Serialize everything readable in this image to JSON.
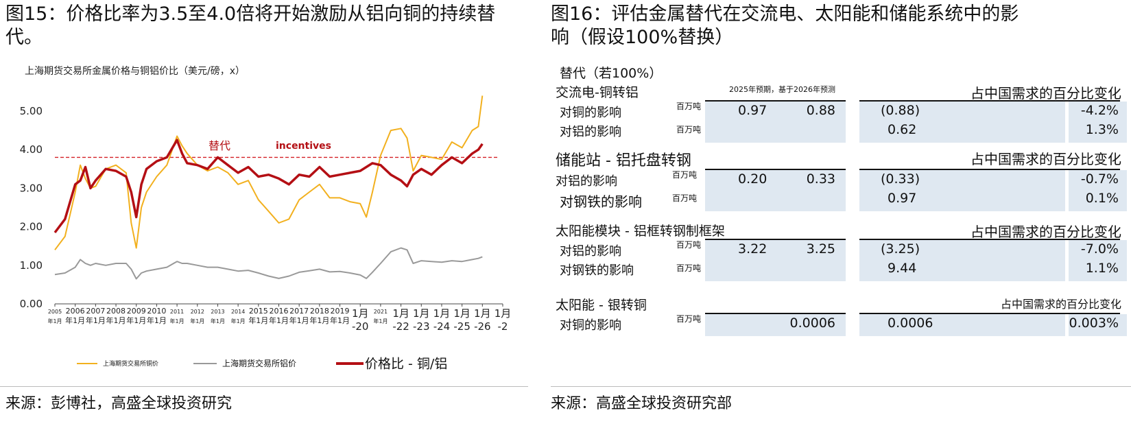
{
  "left": {
    "figure_title_line1": "图15：价格比率为3.5至4.0倍将开始激励从铝向铜的持续替",
    "figure_title_line2": "代。",
    "chart_title": "上海期货交易所金属价格与铜铝价比（美元/磅，x）",
    "source": "来源：彭博社，高盛全球投资研究",
    "annotation_cn": "替代",
    "annotation_en": "incentives"
  },
  "chart_data": {
    "type": "line",
    "title": "上海期货交易所金属价格与铜铝价比（美元/磅，x）",
    "ylim": [
      0,
      5.5
    ],
    "y_ticks": [
      "0.00",
      "1.00",
      "2.00",
      "3.00",
      "4.00",
      "5.00"
    ],
    "x_tick_labels": [
      {
        "top": "2005",
        "bottom": "年1月",
        "size": "small"
      },
      {
        "top": "2006",
        "bottom": "年1月",
        "size": "mid"
      },
      {
        "top": "2007",
        "bottom": "年1月",
        "size": "mid"
      },
      {
        "top": "2008",
        "bottom": "年1月",
        "size": "mid"
      },
      {
        "top": "2009",
        "bottom": "年1月",
        "size": "mid"
      },
      {
        "top": "2010",
        "bottom": "年1月",
        "size": "mid"
      },
      {
        "top": "2011",
        "bottom": "年1月",
        "size": "small"
      },
      {
        "top": "2012",
        "bottom": "年1月",
        "size": "small"
      },
      {
        "top": "2013",
        "bottom": "年1月",
        "size": "small"
      },
      {
        "top": "2014",
        "bottom": "年1月",
        "size": "small"
      },
      {
        "top": "2015",
        "bottom": "年1月",
        "size": "mid"
      },
      {
        "top": "2016",
        "bottom": "年1月",
        "size": "mid"
      },
      {
        "top": "2017",
        "bottom": "年1月",
        "size": "mid"
      },
      {
        "top": "2018",
        "bottom": "年1月",
        "size": "mid"
      },
      {
        "top": "2019",
        "bottom": "年1月",
        "size": "mid"
      },
      {
        "top": "1月",
        "bottom": "-20",
        "size": "big"
      },
      {
        "top": "2021",
        "bottom": "年1月",
        "size": "small"
      },
      {
        "top": "1月",
        "bottom": "-22",
        "size": "big"
      },
      {
        "top": "1月",
        "bottom": "-23",
        "size": "big"
      },
      {
        "top": "1月",
        "bottom": "-24",
        "size": "big"
      },
      {
        "top": "1月",
        "bottom": "-25",
        "size": "big"
      },
      {
        "top": "1月",
        "bottom": "-26",
        "size": "big"
      },
      {
        "top": "1月",
        "bottom": "-2",
        "size": "big"
      }
    ],
    "x": [
      2005.0,
      2005.5,
      2006.0,
      2006.25,
      2006.5,
      2006.75,
      2007.0,
      2007.5,
      2008.0,
      2008.5,
      2008.75,
      2009.0,
      2009.25,
      2009.5,
      2010.0,
      2010.5,
      2011.0,
      2011.25,
      2011.5,
      2012.0,
      2012.5,
      2013.0,
      2013.5,
      2014.0,
      2014.5,
      2015.0,
      2015.5,
      2016.0,
      2016.5,
      2017.0,
      2017.5,
      2018.0,
      2018.5,
      2019.0,
      2019.5,
      2020.0,
      2020.3,
      2020.6,
      2021.0,
      2021.5,
      2022.0,
      2022.3,
      2022.6,
      2023.0,
      2023.5,
      2024.0,
      2024.5,
      2025.0,
      2025.5,
      2025.8,
      2026.0
    ],
    "series": [
      {
        "name": "上海期货交易所铜价",
        "color": "#f2b01e",
        "values": [
          1.4,
          1.75,
          2.9,
          3.6,
          3.25,
          3.0,
          3.05,
          3.5,
          3.6,
          3.4,
          2.1,
          1.45,
          2.5,
          2.9,
          3.3,
          3.6,
          4.35,
          4.1,
          3.9,
          3.6,
          3.45,
          3.55,
          3.4,
          3.1,
          3.2,
          2.7,
          2.4,
          2.1,
          2.2,
          2.7,
          2.9,
          3.1,
          2.75,
          2.75,
          2.65,
          2.6,
          2.25,
          2.9,
          3.85,
          4.5,
          4.55,
          4.3,
          3.45,
          3.85,
          3.8,
          3.75,
          4.2,
          4.05,
          4.5,
          4.6,
          5.4
        ]
      },
      {
        "name": "上海期货交易所铝价",
        "color": "#999999",
        "values": [
          0.76,
          0.8,
          0.95,
          1.15,
          1.05,
          1.0,
          1.05,
          1.0,
          1.05,
          1.05,
          0.9,
          0.65,
          0.8,
          0.85,
          0.9,
          0.95,
          1.1,
          1.05,
          1.05,
          1.0,
          0.95,
          0.95,
          0.9,
          0.85,
          0.87,
          0.8,
          0.72,
          0.66,
          0.72,
          0.82,
          0.86,
          0.9,
          0.83,
          0.84,
          0.8,
          0.75,
          0.66,
          0.82,
          1.05,
          1.35,
          1.45,
          1.4,
          1.05,
          1.12,
          1.1,
          1.08,
          1.12,
          1.1,
          1.15,
          1.18,
          1.22
        ]
      },
      {
        "name": "价格比 - 铜/铝",
        "color": "#b40f14",
        "values": [
          1.85,
          2.2,
          3.1,
          3.2,
          3.55,
          3.0,
          3.2,
          3.5,
          3.45,
          3.3,
          2.9,
          2.25,
          3.1,
          3.5,
          3.7,
          3.8,
          4.25,
          3.9,
          3.65,
          3.6,
          3.5,
          3.8,
          3.6,
          3.4,
          3.55,
          3.3,
          3.35,
          3.25,
          3.1,
          3.35,
          3.3,
          3.55,
          3.3,
          3.35,
          3.4,
          3.45,
          3.55,
          3.65,
          3.6,
          3.35,
          3.2,
          3.05,
          3.35,
          3.5,
          3.35,
          3.6,
          3.8,
          3.65,
          3.9,
          4.0,
          4.15
        ]
      }
    ],
    "reference_line": {
      "y": 3.8,
      "color": "#d42127",
      "style": "dashed"
    },
    "legend": [
      "上海期货交易所铜价",
      "上海期货交易所铝价",
      "价格比 - 铜/铝"
    ],
    "legend_position": "bottom",
    "grid": false
  },
  "right": {
    "figure_title_line1": "图16：评估金属替代在交流电、太阳能和储能系统中的影",
    "figure_title_line2": "响（假设100%替换）",
    "table_heading": "替代（若100%）",
    "col_header_mid": "2025年预期，基于2026年预测",
    "source": "来源：高盛全球投资研究部",
    "sections": [
      {
        "title": "交流电-铜转铝",
        "right_header": "占中国需求的百分比变化",
        "rows": [
          {
            "label": "对铜的影响",
            "unit": "百万吨",
            "v1": "0.97",
            "v2": "0.88",
            "v3": "(0.88)",
            "v4": "-4.2%"
          },
          {
            "label": "对铝的影响",
            "unit": "百万吨",
            "v1": "",
            "v2": "",
            "v3": "0.62",
            "v4": "1.3%"
          }
        ]
      },
      {
        "title": "储能站 - 铝托盘转钢",
        "right_header": "占中国需求的百分比变化",
        "rows": [
          {
            "label": "对铝的影响",
            "unit": "百万吨",
            "v1": "0.20",
            "v2": "0.33",
            "v3": "(0.33)",
            "v4": "-0.7%"
          },
          {
            "label": "对钢铁的影响",
            "unit": "百万吨",
            "v1": "",
            "v2": "",
            "v3": "0.97",
            "v4": "0.1%"
          }
        ]
      },
      {
        "title": "太阳能模块 - 铝框转钢制框架",
        "right_header": "占中国需求的百分比变化",
        "rows": [
          {
            "label": "对铝的影响",
            "unit": "百万吨",
            "v1": "3.22",
            "v2": "3.25",
            "v3": "(3.25)",
            "v4": "-7.0%"
          },
          {
            "label": "对钢铁的影响",
            "unit": "百万吨",
            "v1": "",
            "v2": "",
            "v3": "9.44",
            "v4": "1.1%"
          }
        ]
      },
      {
        "title": "太阳能 - 银转铜",
        "right_header": "占中国需求的百分比变化",
        "rows": [
          {
            "label": "对铜的影响",
            "unit": "百万吨",
            "v1": "",
            "v2": "0.0006",
            "v3": "0.0006",
            "v4": "0.003%"
          }
        ]
      }
    ]
  }
}
